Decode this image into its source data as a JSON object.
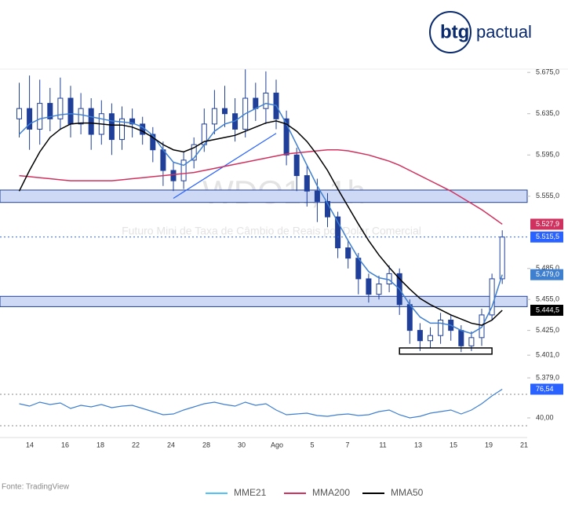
{
  "logo": {
    "brand": "btg",
    "name": "pactual"
  },
  "chart_data": {
    "type": "candlestick",
    "watermark": "WDO1!, 1h",
    "subtitle": "Futuro Mini de Taxa de Câmbio de Reais por Dolar Comercial",
    "source": "Fonte: TradingView",
    "candle_color": "#1f3f99",
    "open": [
      5630,
      5640,
      5620,
      5645,
      5630,
      5650,
      5625,
      5640,
      5615,
      5635,
      5610,
      5630,
      5625,
      5615,
      5600,
      5580,
      5570,
      5590,
      5605,
      5625,
      5640,
      5635,
      5620,
      5650,
      5640,
      5655,
      5630,
      5595,
      5575,
      5560,
      5550,
      5535,
      5505,
      5495,
      5475,
      5460,
      5470,
      5480,
      5450,
      5425,
      5415,
      5420,
      5435,
      5425,
      5410,
      5418,
      5440,
      5475
    ],
    "high": [
      5665,
      5672,
      5668,
      5660,
      5670,
      5662,
      5655,
      5650,
      5648,
      5645,
      5642,
      5640,
      5632,
      5622,
      5608,
      5588,
      5598,
      5612,
      5640,
      5658,
      5662,
      5650,
      5678,
      5665,
      5676,
      5668,
      5638,
      5602,
      5585,
      5572,
      5558,
      5540,
      5512,
      5500,
      5480,
      5478,
      5488,
      5485,
      5455,
      5432,
      5428,
      5442,
      5440,
      5430,
      5424,
      5446,
      5480,
      5522
    ],
    "low": [
      5612,
      5600,
      5605,
      5618,
      5620,
      5612,
      5615,
      5600,
      5605,
      5595,
      5600,
      5612,
      5605,
      5588,
      5565,
      5560,
      5562,
      5582,
      5598,
      5615,
      5622,
      5608,
      5612,
      5628,
      5625,
      5620,
      5585,
      5560,
      5545,
      5530,
      5525,
      5495,
      5485,
      5460,
      5452,
      5455,
      5462,
      5440,
      5412,
      5405,
      5408,
      5412,
      5415,
      5404,
      5405,
      5410,
      5435,
      5470
    ],
    "close": [
      5640,
      5620,
      5645,
      5630,
      5650,
      5625,
      5640,
      5615,
      5635,
      5610,
      5630,
      5625,
      5615,
      5600,
      5580,
      5570,
      5590,
      5605,
      5625,
      5640,
      5635,
      5620,
      5650,
      5640,
      5655,
      5630,
      5595,
      5575,
      5560,
      5550,
      5535,
      5505,
      5495,
      5475,
      5460,
      5470,
      5480,
      5450,
      5425,
      5415,
      5420,
      5435,
      5425,
      5410,
      5418,
      5440,
      5475,
      5515.5
    ],
    "close_last_label": "5.515,5",
    "series": [
      {
        "name": "MME21",
        "color": "#3f7fd0",
        "legend_color": "#4fc3f7",
        "last_label": "5.479,0",
        "values": [
          5615,
          5625,
          5630,
          5632,
          5634,
          5635,
          5634,
          5632,
          5630,
          5628,
          5627,
          5626,
          5622,
          5614,
          5600,
          5588,
          5585,
          5592,
          5605,
          5618,
          5625,
          5628,
          5635,
          5640,
          5645,
          5643,
          5625,
          5605,
          5585,
          5565,
          5548,
          5530,
          5512,
          5495,
          5482,
          5476,
          5474,
          5465,
          5450,
          5438,
          5432,
          5432,
          5430,
          5425,
          5422,
          5428,
          5448,
          5479
        ]
      },
      {
        "name": "MMA200",
        "color": "#d0325f",
        "legend_color": "#d0325f",
        "last_label": "5.527,9",
        "values": [
          5575,
          5574,
          5573,
          5572,
          5571,
          5570,
          5570,
          5570,
          5570,
          5570,
          5571,
          5572,
          5573,
          5574,
          5575,
          5576,
          5577,
          5578,
          5580,
          5582,
          5584,
          5586,
          5588,
          5590,
          5592,
          5594,
          5596,
          5597,
          5598,
          5599,
          5600,
          5600,
          5599,
          5597,
          5595,
          5592,
          5589,
          5585,
          5580,
          5575,
          5570,
          5565,
          5560,
          5554,
          5548,
          5542,
          5535,
          5527.9
        ]
      },
      {
        "name": "MMA50",
        "color": "#000000",
        "legend_color": "#000000",
        "last_label": "5.444,5",
        "values": [
          5560,
          5580,
          5598,
          5612,
          5620,
          5625,
          5626,
          5626,
          5625,
          5624,
          5624,
          5622,
          5618,
          5612,
          5605,
          5600,
          5598,
          5602,
          5608,
          5610,
          5612,
          5614,
          5618,
          5622,
          5626,
          5628,
          5625,
          5618,
          5608,
          5595,
          5580,
          5562,
          5545,
          5528,
          5512,
          5498,
          5486,
          5475,
          5465,
          5456,
          5450,
          5445,
          5440,
          5436,
          5432,
          5430,
          5435,
          5444.5
        ]
      }
    ],
    "zones": [
      [
        5549,
        5561
      ],
      [
        5448,
        5458
      ]
    ],
    "trendline": {
      "from": [
        15,
        5553
      ],
      "to": [
        25,
        5616
      ]
    },
    "support": {
      "from": [
        37,
        5408
      ],
      "to": [
        46,
        5402
      ]
    },
    "ylim": [
      5376,
      5682
    ],
    "yticks": [
      {
        "value": 5675,
        "label": "5.675,0"
      },
      {
        "value": 5635,
        "label": "5.635,0"
      },
      {
        "value": 5595,
        "label": "5.595,0"
      },
      {
        "value": 5555,
        "label": "5.555,0"
      },
      {
        "value": 5485,
        "label": "5.485,0"
      },
      {
        "value": 5455,
        "label": "5.455,0"
      },
      {
        "value": 5425,
        "label": "5.425,0"
      },
      {
        "value": 5401,
        "label": "5.401,0"
      },
      {
        "value": 5379,
        "label": "5.379,0"
      }
    ],
    "x_labels": [
      "14",
      "16",
      "18",
      "22",
      "24",
      "28",
      "30",
      "Ago",
      "5",
      "7",
      "11",
      "13",
      "15",
      "19",
      "21"
    ],
    "rsi": {
      "color": "#3f7fd0",
      "last_label": "76,54",
      "values": [
        58,
        55,
        60,
        57,
        59,
        52,
        56,
        54,
        57,
        53,
        55,
        56,
        52,
        48,
        44,
        45,
        50,
        54,
        58,
        60,
        57,
        55,
        60,
        56,
        58,
        50,
        44,
        45,
        46,
        43,
        42,
        44,
        45,
        43,
        44,
        48,
        50,
        44,
        40,
        42,
        46,
        48,
        50,
        45,
        50,
        58,
        68,
        76.54
      ],
      "ylim": [
        20,
        82
      ],
      "yticks": [
        {
          "value": 40,
          "label": "40,00"
        }
      ],
      "levels": [
        70,
        30
      ]
    }
  }
}
